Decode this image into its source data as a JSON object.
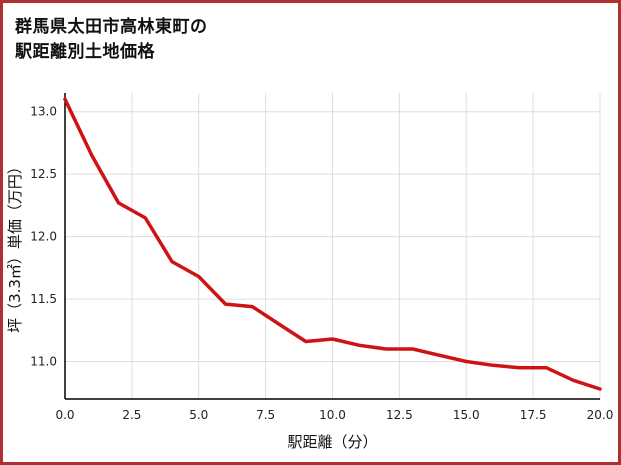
{
  "title": {
    "line1": "群馬県太田市高林東町の",
    "line2": "駅距離別土地価格"
  },
  "colors": {
    "border": "#b03030",
    "background": "#ffffff",
    "title_text": "#111111"
  },
  "chart_data": {
    "type": "line",
    "title": "群馬県太田市高林東町の駅距離別土地価格",
    "xlabel": "駅距離（分）",
    "ylabel": "坪（3.3㎡）単価（万円）",
    "x": [
      0,
      1,
      2,
      3,
      4,
      5,
      6,
      7,
      8,
      9,
      10,
      11,
      12,
      13,
      14,
      15,
      16,
      17,
      18,
      19,
      20
    ],
    "values": [
      13.1,
      12.65,
      12.27,
      12.15,
      11.8,
      11.68,
      11.46,
      11.44,
      11.3,
      11.16,
      11.18,
      11.13,
      11.1,
      11.1,
      11.05,
      11.0,
      10.97,
      10.95,
      10.95,
      10.85,
      10.78
    ],
    "xlim": [
      0,
      20
    ],
    "ylim": [
      10.7,
      13.15
    ],
    "x_ticks": [
      0,
      2.5,
      5,
      7.5,
      10,
      12.5,
      15,
      17.5,
      20
    ],
    "x_tick_labels": [
      "0.0",
      "2.5",
      "5.0",
      "7.5",
      "10.0",
      "12.5",
      "15.0",
      "17.5",
      "20.0"
    ],
    "y_ticks": [
      11.0,
      11.5,
      12.0,
      12.5,
      13.0
    ],
    "y_tick_labels": [
      "11.0",
      "11.5",
      "12.0",
      "12.5",
      "13.0"
    ],
    "line_color": "#cf1315",
    "line_width": 3.5,
    "grid": true,
    "grid_color": "#dddddd",
    "axis_color": "#000000",
    "legend_position": "none"
  }
}
